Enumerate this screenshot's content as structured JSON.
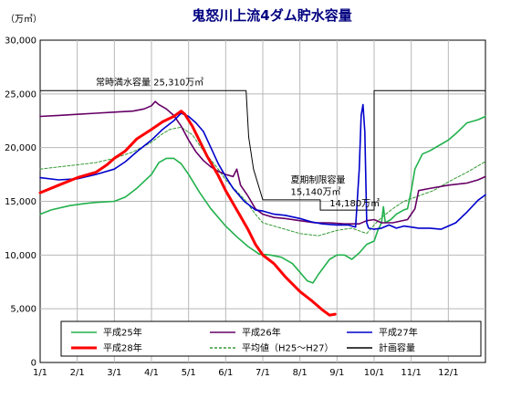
{
  "chart_data": {
    "type": "line",
    "title": "鬼怒川上流4ダム貯水容量",
    "unit_label": "（万㎥）",
    "ylim": [
      0,
      30000
    ],
    "y_ticks": [
      0,
      5000,
      10000,
      15000,
      20000,
      25000,
      30000
    ],
    "y_tick_labels": [
      "0",
      "5,000",
      "10,000",
      "15,000",
      "20,000",
      "25,000",
      "30,000"
    ],
    "xlim": [
      0,
      12
    ],
    "x_tick_labels": [
      "1/1",
      "2/1",
      "3/1",
      "4/1",
      "5/1",
      "6/1",
      "7/1",
      "8/1",
      "9/1",
      "10/1",
      "11/1",
      "12/1"
    ],
    "grid": true,
    "legend_position": "bottom",
    "annotations": [
      {
        "text": "常時満水容量 25,310万㎥",
        "x": 1.5,
        "y": 25800
      },
      {
        "text": "夏期制限容量",
        "x": 6.75,
        "y": 16700
      },
      {
        "text": "15,140万㎥",
        "x": 6.75,
        "y": 15600
      },
      {
        "text": "14,180万㎥",
        "x": 7.8,
        "y": 14550
      }
    ],
    "series": [
      {
        "name": "計画容量",
        "color": "#000000",
        "width": 1,
        "dash": "",
        "points": [
          [
            0,
            25310
          ],
          [
            5.55,
            25310
          ],
          [
            5.62,
            21000
          ],
          [
            5.75,
            18000
          ],
          [
            6.0,
            15140
          ],
          [
            7.55,
            15140
          ],
          [
            7.55,
            14180
          ],
          [
            9.0,
            14180
          ],
          [
            9.0,
            25310
          ],
          [
            12,
            25310
          ]
        ]
      },
      {
        "name": "平均値（H25～H27）",
        "color": "#339933",
        "width": 1,
        "dash": "3,2",
        "points": [
          [
            0,
            18000
          ],
          [
            0.5,
            18200
          ],
          [
            1,
            18400
          ],
          [
            1.5,
            18600
          ],
          [
            2,
            19000
          ],
          [
            2.5,
            19600
          ],
          [
            3,
            20500
          ],
          [
            3.3,
            21300
          ],
          [
            3.5,
            21700
          ],
          [
            3.8,
            21900
          ],
          [
            4.1,
            21200
          ],
          [
            4.4,
            19700
          ],
          [
            4.8,
            18000
          ],
          [
            5.0,
            17000
          ],
          [
            5.5,
            15200
          ],
          [
            5.8,
            13800
          ],
          [
            6.0,
            13000
          ],
          [
            6.5,
            12500
          ],
          [
            7.0,
            12000
          ],
          [
            7.5,
            11800
          ],
          [
            8.0,
            12300
          ],
          [
            8.4,
            12500
          ],
          [
            8.8,
            12000
          ],
          [
            9.0,
            12800
          ],
          [
            9.2,
            13500
          ],
          [
            9.5,
            14300
          ],
          [
            9.8,
            15000
          ],
          [
            10.2,
            15500
          ],
          [
            10.6,
            16000
          ],
          [
            11.0,
            16800
          ],
          [
            11.5,
            17700
          ],
          [
            12,
            18700
          ]
        ]
      },
      {
        "name": "平成25年",
        "color": "#22b14c",
        "width": 1.6,
        "dash": "",
        "points": [
          [
            0,
            13800
          ],
          [
            0.3,
            14200
          ],
          [
            0.8,
            14600
          ],
          [
            1.2,
            14800
          ],
          [
            1.5,
            14900
          ],
          [
            2.0,
            15000
          ],
          [
            2.3,
            15400
          ],
          [
            2.6,
            16200
          ],
          [
            3.0,
            17500
          ],
          [
            3.2,
            18600
          ],
          [
            3.4,
            19000
          ],
          [
            3.6,
            19000
          ],
          [
            3.8,
            18500
          ],
          [
            4.0,
            17500
          ],
          [
            4.3,
            15800
          ],
          [
            4.6,
            14300
          ],
          [
            5.0,
            12700
          ],
          [
            5.3,
            11700
          ],
          [
            5.6,
            10800
          ],
          [
            5.9,
            10100
          ],
          [
            6.2,
            10000
          ],
          [
            6.5,
            9800
          ],
          [
            6.8,
            9200
          ],
          [
            7.0,
            8400
          ],
          [
            7.2,
            7600
          ],
          [
            7.35,
            7400
          ],
          [
            7.5,
            8200
          ],
          [
            7.8,
            9600
          ],
          [
            8.0,
            10000
          ],
          [
            8.2,
            10000
          ],
          [
            8.4,
            9600
          ],
          [
            8.6,
            10200
          ],
          [
            8.8,
            11000
          ],
          [
            9.0,
            11300
          ],
          [
            9.1,
            12300
          ],
          [
            9.2,
            13000
          ],
          [
            9.25,
            14500
          ],
          [
            9.3,
            13000
          ],
          [
            9.45,
            13300
          ],
          [
            9.6,
            13800
          ],
          [
            9.8,
            14200
          ],
          [
            9.9,
            14300
          ],
          [
            10.0,
            16000
          ],
          [
            10.1,
            18000
          ],
          [
            10.3,
            19400
          ],
          [
            10.5,
            19700
          ],
          [
            10.7,
            20100
          ],
          [
            11.0,
            20700
          ],
          [
            11.2,
            21300
          ],
          [
            11.5,
            22300
          ],
          [
            11.8,
            22600
          ],
          [
            12,
            22900
          ]
        ]
      },
      {
        "name": "平成26年",
        "color": "#660066",
        "width": 1.6,
        "dash": "",
        "points": [
          [
            0,
            22900
          ],
          [
            0.5,
            23000
          ],
          [
            1.0,
            23100
          ],
          [
            1.5,
            23200
          ],
          [
            2.0,
            23300
          ],
          [
            2.5,
            23400
          ],
          [
            2.8,
            23600
          ],
          [
            3.0,
            23900
          ],
          [
            3.1,
            24300
          ],
          [
            3.2,
            24000
          ],
          [
            3.4,
            23600
          ],
          [
            3.6,
            23000
          ],
          [
            3.8,
            22000
          ],
          [
            4.0,
            20700
          ],
          [
            4.2,
            19600
          ],
          [
            4.4,
            18800
          ],
          [
            4.6,
            18200
          ],
          [
            4.8,
            17800
          ],
          [
            5.0,
            17500
          ],
          [
            5.2,
            17300
          ],
          [
            5.3,
            18000
          ],
          [
            5.4,
            16500
          ],
          [
            5.6,
            15500
          ],
          [
            5.8,
            14300
          ],
          [
            6.0,
            13800
          ],
          [
            6.3,
            13500
          ],
          [
            6.6,
            13400
          ],
          [
            7.0,
            13200
          ],
          [
            7.4,
            13000
          ],
          [
            7.8,
            13000
          ],
          [
            8.2,
            12900
          ],
          [
            8.6,
            12900
          ],
          [
            8.8,
            13200
          ],
          [
            9.0,
            13300
          ],
          [
            9.2,
            13000
          ],
          [
            9.5,
            13000
          ],
          [
            9.9,
            13300
          ],
          [
            10.1,
            14300
          ],
          [
            10.2,
            16000
          ],
          [
            10.5,
            16200
          ],
          [
            11.0,
            16500
          ],
          [
            11.5,
            16700
          ],
          [
            11.8,
            17000
          ],
          [
            12,
            17300
          ]
        ]
      },
      {
        "name": "平成27年",
        "color": "#0000cc",
        "width": 1.6,
        "dash": "",
        "points": [
          [
            0,
            17200
          ],
          [
            0.5,
            17000
          ],
          [
            1.0,
            17100
          ],
          [
            1.5,
            17500
          ],
          [
            2.0,
            18000
          ],
          [
            2.3,
            18700
          ],
          [
            2.6,
            19600
          ],
          [
            3.0,
            20700
          ],
          [
            3.3,
            21700
          ],
          [
            3.6,
            22500
          ],
          [
            3.8,
            23200
          ],
          [
            4.0,
            22900
          ],
          [
            4.2,
            22300
          ],
          [
            4.4,
            21500
          ],
          [
            4.6,
            20000
          ],
          [
            4.8,
            18500
          ],
          [
            5.0,
            17300
          ],
          [
            5.2,
            16200
          ],
          [
            5.5,
            15000
          ],
          [
            5.8,
            14200
          ],
          [
            6.0,
            14100
          ],
          [
            6.3,
            13800
          ],
          [
            6.6,
            13700
          ],
          [
            7.0,
            13400
          ],
          [
            7.3,
            13100
          ],
          [
            7.6,
            12900
          ],
          [
            8.0,
            12800
          ],
          [
            8.3,
            12800
          ],
          [
            8.5,
            12600
          ],
          [
            8.6,
            18000
          ],
          [
            8.65,
            23000
          ],
          [
            8.7,
            24000
          ],
          [
            8.75,
            21500
          ],
          [
            8.8,
            13000
          ],
          [
            8.85,
            12500
          ],
          [
            9.0,
            12400
          ],
          [
            9.2,
            12500
          ],
          [
            9.4,
            12800
          ],
          [
            9.6,
            12500
          ],
          [
            9.8,
            12700
          ],
          [
            10.0,
            12600
          ],
          [
            10.2,
            12500
          ],
          [
            10.5,
            12500
          ],
          [
            10.8,
            12400
          ],
          [
            11.0,
            12700
          ],
          [
            11.2,
            13000
          ],
          [
            11.5,
            14000
          ],
          [
            11.8,
            15100
          ],
          [
            12,
            15600
          ]
        ]
      },
      {
        "name": "平成28年",
        "color": "#ff0000",
        "width": 3,
        "dash": "",
        "points": [
          [
            0,
            15800
          ],
          [
            0.5,
            16500
          ],
          [
            1.0,
            17200
          ],
          [
            1.5,
            17700
          ],
          [
            1.8,
            18400
          ],
          [
            2.0,
            19000
          ],
          [
            2.3,
            19700
          ],
          [
            2.6,
            20800
          ],
          [
            3.0,
            21700
          ],
          [
            3.3,
            22400
          ],
          [
            3.6,
            22900
          ],
          [
            3.8,
            23400
          ],
          [
            3.9,
            23100
          ],
          [
            4.1,
            22000
          ],
          [
            4.3,
            20600
          ],
          [
            4.5,
            19200
          ],
          [
            4.8,
            17400
          ],
          [
            5.0,
            16000
          ],
          [
            5.3,
            14200
          ],
          [
            5.6,
            12400
          ],
          [
            5.8,
            11000
          ],
          [
            6.0,
            10000
          ],
          [
            6.3,
            9200
          ],
          [
            6.6,
            8000
          ],
          [
            7.0,
            6600
          ],
          [
            7.3,
            5800
          ],
          [
            7.6,
            4900
          ],
          [
            7.8,
            4400
          ],
          [
            7.95,
            4500
          ]
        ]
      }
    ],
    "legend": [
      {
        "label": "平成25年",
        "series": 2
      },
      {
        "label": "平成26年",
        "series": 3
      },
      {
        "label": "平成27年",
        "series": 4
      },
      {
        "label": "平成28年",
        "series": 5
      },
      {
        "label": "平均値（H25～H27）",
        "series": 1
      },
      {
        "label": "計画容量",
        "series": 0
      }
    ]
  }
}
